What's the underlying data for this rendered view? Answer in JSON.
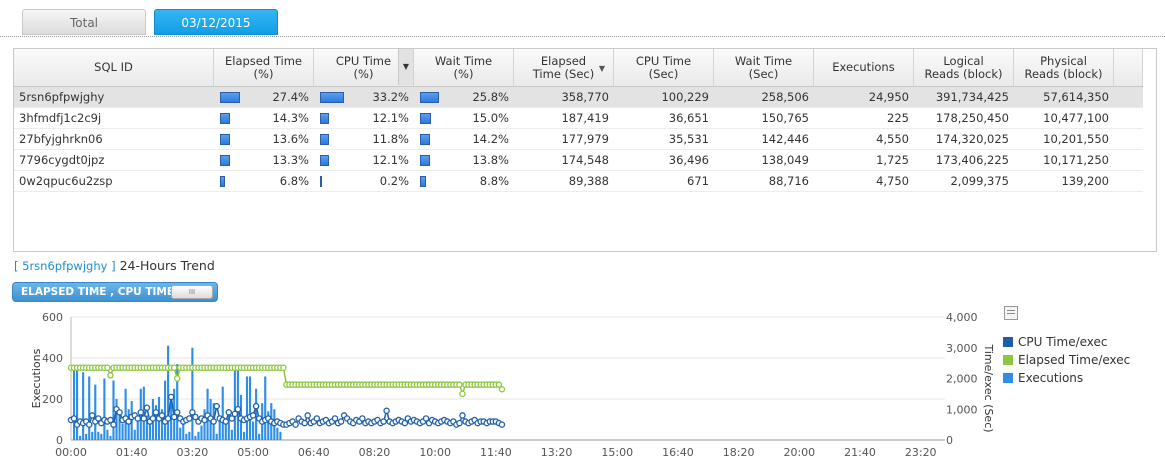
{
  "tabs": [
    {
      "label": "Total",
      "active": false
    },
    {
      "label": "03/12/2015",
      "active": true
    }
  ],
  "table": {
    "columns": [
      {
        "key": "sql_id",
        "label": "SQL ID"
      },
      {
        "key": "elapsed_pct",
        "label": "Elapsed Time\n(%)"
      },
      {
        "key": "cpu_pct",
        "label": "CPU Time\n(%)",
        "dropdown": true
      },
      {
        "key": "wait_pct",
        "label": "Wait Time\n(%)"
      },
      {
        "key": "elapsed_sec",
        "label": "Elapsed\nTime (Sec)",
        "sorted": "desc"
      },
      {
        "key": "cpu_sec",
        "label": "CPU Time\n(Sec)"
      },
      {
        "key": "wait_sec",
        "label": "Wait Time\n(Sec)"
      },
      {
        "key": "executions",
        "label": "Executions"
      },
      {
        "key": "logical",
        "label": "Logical\nReads (block)"
      },
      {
        "key": "physical",
        "label": "Physical\nReads (block)"
      }
    ],
    "rows": [
      {
        "sql_id": "5rsn6pfpwjghy",
        "elapsed_pct": "27.4%",
        "cpu_pct": "33.2%",
        "wait_pct": "25.8%",
        "elapsed_pct_v": 27.4,
        "cpu_pct_v": 33.2,
        "wait_pct_v": 25.8,
        "elapsed_sec": "358,770",
        "cpu_sec": "100,229",
        "wait_sec": "258,506",
        "executions": "24,950",
        "logical": "391,734,425",
        "physical": "57,614,350",
        "selected": true
      },
      {
        "sql_id": "3hfmdfj1c2c9j",
        "elapsed_pct": "14.3%",
        "cpu_pct": "12.1%",
        "wait_pct": "15.0%",
        "elapsed_pct_v": 14.3,
        "cpu_pct_v": 12.1,
        "wait_pct_v": 15.0,
        "elapsed_sec": "187,419",
        "cpu_sec": "36,651",
        "wait_sec": "150,765",
        "executions": "225",
        "logical": "178,250,450",
        "physical": "10,477,100",
        "selected": false
      },
      {
        "sql_id": "27bfyjghrkn06",
        "elapsed_pct": "13.6%",
        "cpu_pct": "11.8%",
        "wait_pct": "14.2%",
        "elapsed_pct_v": 13.6,
        "cpu_pct_v": 11.8,
        "wait_pct_v": 14.2,
        "elapsed_sec": "177,979",
        "cpu_sec": "35,531",
        "wait_sec": "142,446",
        "executions": "4,550",
        "logical": "174,320,025",
        "physical": "10,201,550",
        "selected": false
      },
      {
        "sql_id": "7796cygdt0jpz",
        "elapsed_pct": "13.3%",
        "cpu_pct": "12.1%",
        "wait_pct": "13.8%",
        "elapsed_pct_v": 13.3,
        "cpu_pct_v": 12.1,
        "wait_pct_v": 13.8,
        "elapsed_sec": "174,548",
        "cpu_sec": "36,496",
        "wait_sec": "138,049",
        "executions": "1,725",
        "logical": "173,406,225",
        "physical": "10,171,250",
        "selected": false
      },
      {
        "sql_id": "0w2qpuc6u2zsp",
        "elapsed_pct": "6.8%",
        "cpu_pct": "0.2%",
        "wait_pct": "8.8%",
        "elapsed_pct_v": 6.8,
        "cpu_pct_v": 0.2,
        "wait_pct_v": 8.8,
        "elapsed_sec": "89,388",
        "cpu_sec": "671",
        "wait_sec": "88,716",
        "executions": "4,750",
        "logical": "2,099,375",
        "physical": "139,200",
        "selected": false
      }
    ]
  },
  "trend": {
    "sql_id": "[ 5rsn6pfpwjghy ]",
    "title": "24-Hours Trend"
  },
  "toggle": {
    "label": "ELAPSED TIME , CPU TIME",
    "knob": "III"
  },
  "colors": {
    "accent": "#1a9fe6",
    "cpu": "#1f5fa8",
    "elapsed": "#8dc63f",
    "executions": "#2d8ee8"
  },
  "chart_data": {
    "type": "bar+line",
    "xlabel": "",
    "x_ticks": [
      "00:00",
      "01:40",
      "03:20",
      "05:00",
      "06:40",
      "08:20",
      "10:00",
      "11:40",
      "13:20",
      "15:00",
      "16:40",
      "18:20",
      "20:00",
      "21:40",
      "23:20"
    ],
    "x_range_minutes": [
      0,
      1440
    ],
    "left_axis": {
      "label": "Executions",
      "ticks": [
        "0",
        "200",
        "400",
        "600"
      ],
      "ylim": [
        0,
        600
      ]
    },
    "right_axis": {
      "label": "Time/exec (Sec)",
      "ticks": [
        "0",
        "1,000",
        "2,000",
        "3,000",
        "4,000"
      ],
      "ylim": [
        0,
        4000
      ]
    },
    "legend": [
      "CPU Time/exec",
      "Elapsed Time/exec",
      "Executions"
    ],
    "legend_position": "right",
    "executions": [
      0,
      350,
      340,
      20,
      330,
      30,
      310,
      40,
      270,
      40,
      30,
      300,
      50,
      20,
      290,
      200,
      140,
      80,
      250,
      150,
      190,
      50,
      120,
      250,
      260,
      120,
      80,
      200,
      170,
      210,
      150,
      290,
      460,
      180,
      250,
      370,
      60,
      80,
      30,
      40,
      450,
      20,
      40,
      70,
      150,
      250,
      200,
      180,
      30,
      100,
      260,
      80,
      150,
      50,
      350,
      340,
      220,
      40,
      310,
      310,
      90,
      250,
      30,
      180,
      310,
      140,
      180,
      150,
      60,
      40,
      0,
      0,
      0,
      0,
      0,
      0,
      0,
      0,
      0,
      0,
      0,
      0,
      0,
      0,
      0,
      0,
      0,
      0,
      0,
      0,
      0,
      0,
      0,
      0,
      0,
      0,
      0,
      0,
      0,
      0,
      0,
      0,
      0,
      0,
      0,
      0,
      0,
      0,
      0,
      0,
      0,
      0,
      0,
      0,
      0,
      0,
      0,
      0,
      0,
      0,
      0,
      0,
      0,
      0,
      0,
      0,
      0,
      0,
      0,
      0,
      0,
      0,
      0,
      0,
      0,
      0,
      0,
      0,
      0,
      0,
      0,
      0,
      0,
      0,
      0,
      0,
      0,
      0,
      0,
      0,
      0,
      0,
      0,
      0,
      0,
      0,
      0,
      0,
      0,
      0,
      0,
      0,
      0,
      0,
      0,
      0,
      0,
      0,
      0,
      0,
      0,
      0,
      0,
      0,
      0,
      0,
      0,
      0,
      0,
      0,
      0,
      0,
      0,
      0
    ],
    "elapsed_per_exec": [
      2350,
      2350,
      2350,
      2350,
      2350,
      2350,
      2350,
      2350,
      2350,
      2350,
      2350,
      2350,
      2350,
      2100,
      2350,
      2350,
      2350,
      2350,
      2350,
      2350,
      2350,
      2350,
      2350,
      2350,
      2350,
      2350,
      2350,
      2350,
      2350,
      2350,
      2350,
      2350,
      2350,
      2350,
      2350,
      2000,
      2350,
      2350,
      2350,
      2350,
      2350,
      2350,
      2350,
      2350,
      2350,
      2350,
      2350,
      2350,
      2350,
      2350,
      2350,
      2350,
      2350,
      2350,
      2350,
      2350,
      2350,
      2350,
      2350,
      2350,
      2350,
      2350,
      2350,
      2350,
      2350,
      2350,
      2350,
      2350,
      2350,
      2350,
      2350,
      1800,
      1800,
      1800,
      1800,
      1800,
      1800,
      1800,
      1800,
      1800,
      1800,
      1800,
      1800,
      1800,
      1800,
      1800,
      1800,
      1800,
      1800,
      1800,
      1800,
      1800,
      1800,
      1800,
      1800,
      1800,
      1800,
      1800,
      1800,
      1800,
      1800,
      1800,
      1800,
      1800,
      1800,
      1800,
      1800,
      1800,
      1800,
      1800,
      1800,
      1800,
      1800,
      1800,
      1800,
      1800,
      1800,
      1800,
      1800,
      1800,
      1800,
      1800,
      1800,
      1800,
      1800,
      1800,
      1800,
      1800,
      1800,
      1500,
      1800,
      1800,
      1800,
      1800,
      1800,
      1800,
      1800,
      1800,
      1800,
      1800,
      1800,
      1800,
      1650
    ],
    "cpu_per_exec": [
      650,
      700,
      500,
      600,
      550,
      600,
      500,
      800,
      600,
      700,
      550,
      650,
      600,
      650,
      500,
      1000,
      900,
      650,
      700,
      600,
      750,
      800,
      700,
      900,
      700,
      1050,
      600,
      700,
      900,
      700,
      800,
      600,
      700,
      1400,
      750,
      900,
      700,
      600,
      650,
      700,
      900,
      750,
      600,
      700,
      650,
      800,
      700,
      600,
      1100,
      700,
      650,
      600,
      900,
      700,
      850,
      1000,
      700,
      650,
      700,
      750,
      800,
      1100,
      700,
      600,
      650,
      700,
      600,
      550,
      600,
      550,
      500,
      500,
      550,
      600,
      500,
      700,
      600,
      550,
      800,
      550,
      600,
      700,
      550,
      600,
      650,
      550,
      600,
      700,
      550,
      600,
      800,
      700,
      600,
      550,
      650,
      600,
      700,
      550,
      600,
      550,
      600,
      650,
      550,
      600,
      950,
      600,
      550,
      600,
      650,
      600,
      550,
      700,
      600,
      650,
      600,
      550,
      600,
      700,
      550,
      650,
      600,
      550,
      600,
      650,
      600,
      550,
      600,
      500,
      550,
      800,
      600,
      550,
      600,
      650,
      550,
      600,
      600,
      550,
      600,
      600,
      600,
      550,
      500
    ]
  }
}
